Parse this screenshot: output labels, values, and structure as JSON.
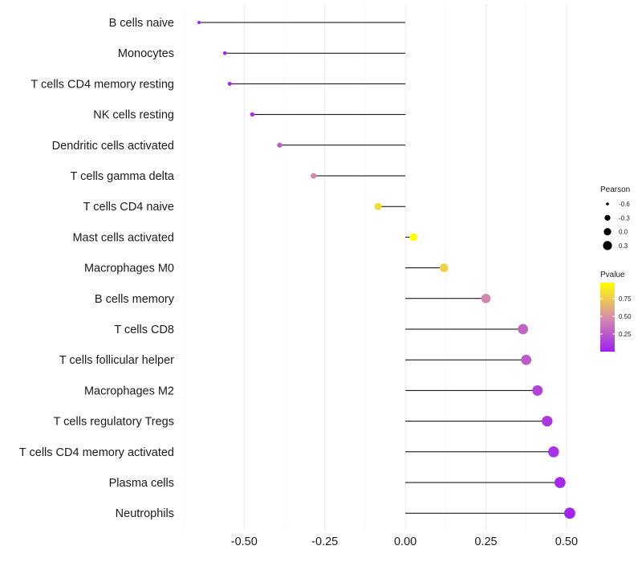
{
  "chart_data": {
    "type": "lollipop",
    "categories": [
      "B cells naive",
      "Monocytes",
      "T cells CD4 memory resting",
      "NK cells resting",
      "Dendritic cells activated",
      "T cells gamma delta",
      "T cells CD4 naive",
      "Mast cells activated",
      "Macrophages M0",
      "B cells memory",
      "T cells CD8",
      "T cells follicular helper",
      "Macrophages M2",
      "T cells regulatory  Tregs ",
      "T cells CD4 memory activated",
      "Plasma cells",
      "Neutrophils"
    ],
    "values": [
      -0.64,
      -0.56,
      -0.545,
      -0.475,
      -0.39,
      -0.285,
      -0.085,
      0.025,
      0.12,
      0.25,
      0.365,
      0.375,
      0.41,
      0.44,
      0.46,
      0.48,
      0.51
    ],
    "pvalues": [
      0.02,
      0.03,
      0.03,
      0.1,
      0.25,
      0.45,
      0.82,
      0.98,
      0.78,
      0.45,
      0.3,
      0.25,
      0.15,
      0.1,
      0.08,
      0.04,
      0.02
    ],
    "x_ticks": [
      -0.5,
      -0.25,
      0.0,
      0.25,
      0.5
    ],
    "x_tick_labels": [
      "-0.50",
      "-0.25",
      "0.00",
      "0.25",
      "0.50"
    ],
    "xlim": [
      -0.69,
      0.56
    ],
    "size_legend": {
      "title": "Pearson",
      "values": [
        -0.6,
        -0.3,
        0.0,
        0.3
      ],
      "labels": [
        "-0.6",
        "-0.3",
        "0.0",
        "0.3"
      ]
    },
    "color_legend": {
      "title": "Pvalue",
      "ticks": [
        0.25,
        0.5,
        0.75
      ],
      "labels": [
        "0.25",
        "0.50",
        "0.75"
      ],
      "range": [
        0.0,
        0.98
      ],
      "low_color": "#a020f0",
      "mid_color": "#d68fa8",
      "high_color": "#ffff00"
    },
    "line_color": "#000000",
    "grid_color": "#ebebeb"
  }
}
